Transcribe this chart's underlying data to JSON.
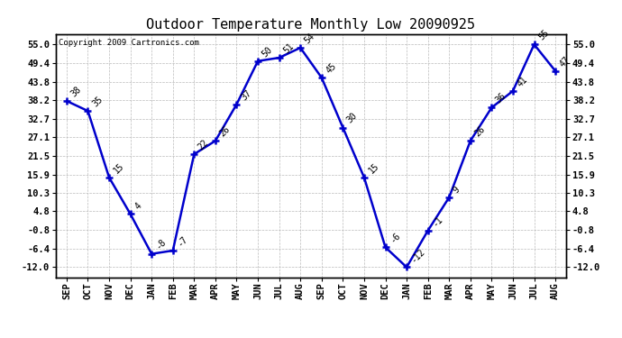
{
  "title": "Outdoor Temperature Monthly Low 20090925",
  "copyright": "Copyright 2009 Cartronics.com",
  "categories": [
    "SEP",
    "OCT",
    "NOV",
    "DEC",
    "JAN",
    "FEB",
    "MAR",
    "APR",
    "MAY",
    "JUN",
    "JUL",
    "AUG",
    "SEP",
    "OCT",
    "NOV",
    "DEC",
    "JAN",
    "FEB",
    "MAR",
    "APR",
    "MAY",
    "JUN",
    "JUL",
    "AUG"
  ],
  "values": [
    38,
    35,
    15,
    4,
    -8,
    -7,
    22,
    26,
    37,
    50,
    51,
    54,
    45,
    30,
    15,
    -6,
    -12,
    -1,
    9,
    26,
    36,
    41,
    55,
    47
  ],
  "yticks": [
    55.0,
    49.4,
    43.8,
    38.2,
    32.7,
    27.1,
    21.5,
    15.9,
    10.3,
    4.8,
    -0.8,
    -6.4,
    -12.0
  ],
  "ytick_labels": [
    "55.0",
    "49.4",
    "43.8",
    "38.2",
    "32.7",
    "27.1",
    "21.5",
    "15.9",
    "10.3",
    "4.8",
    "-0.8",
    "-6.4",
    "-12.0"
  ],
  "ylim": [
    -15.0,
    58.2
  ],
  "line_color": "#0000cc",
  "marker_color": "#0000cc",
  "bg_color": "#ffffff",
  "grid_color": "#bbbbbb",
  "title_fontsize": 11,
  "tick_fontsize": 7.5,
  "annotation_fontsize": 7,
  "copyright_fontsize": 6.5
}
